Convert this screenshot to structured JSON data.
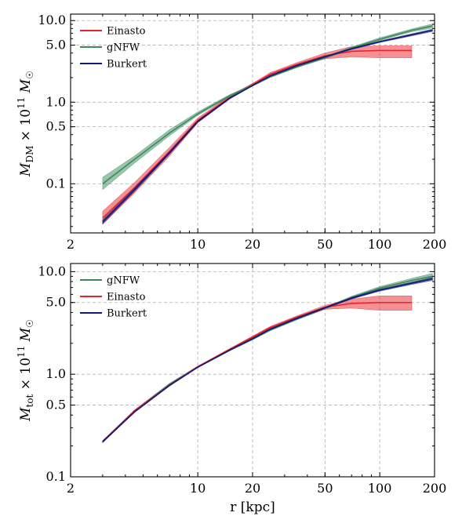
{
  "colors": {
    "Einasto": "#e8232b",
    "gNFW": "#3a8a5a",
    "Burkert": "#141a78"
  },
  "chart_data": [
    {
      "type": "line",
      "id": "top",
      "xscale": "log",
      "yscale": "log",
      "xlim": [
        2,
        200
      ],
      "ylim": [
        0.025,
        12
      ],
      "grid": true,
      "legend_position": "top-left",
      "xlabel": "",
      "ylabel": "M_DM × 10^11 M_☉",
      "ylabel_parts": {
        "base": "M",
        "sub": "DM",
        "mid": " × 10",
        "exp": "11",
        "mass": " M",
        "sun": "☉"
      },
      "x_ticks": [
        2,
        10,
        20,
        50,
        100,
        200
      ],
      "x_tick_labels": [
        "2",
        "10",
        "20",
        "50",
        "100",
        "200"
      ],
      "y_ticks": [
        0.1,
        0.5,
        1.0,
        5.0,
        10.0
      ],
      "y_tick_labels": [
        "0.1",
        "0.5",
        "1.0",
        "5.0",
        "10.0"
      ],
      "legend": [
        "Einasto",
        "gNFW",
        "Burkert"
      ],
      "series": [
        {
          "name": "Einasto",
          "x": [
            3.0,
            4.5,
            7.0,
            10,
            15,
            20,
            25,
            35,
            50,
            70,
            100,
            150
          ],
          "y": [
            0.038,
            0.09,
            0.25,
            0.6,
            1.15,
            1.65,
            2.2,
            2.9,
            3.7,
            4.2,
            4.3,
            4.3
          ],
          "lower": [
            0.032,
            0.078,
            0.22,
            0.56,
            1.1,
            1.6,
            2.1,
            2.75,
            3.4,
            3.6,
            3.5,
            3.5
          ],
          "upper": [
            0.046,
            0.104,
            0.28,
            0.64,
            1.2,
            1.7,
            2.3,
            3.05,
            4.0,
            4.8,
            4.9,
            4.9
          ]
        },
        {
          "name": "gNFW",
          "x": [
            3.0,
            4.5,
            7.0,
            10,
            15,
            20,
            25,
            35,
            50,
            70,
            100,
            150,
            195
          ],
          "y": [
            0.1,
            0.2,
            0.42,
            0.72,
            1.2,
            1.6,
            2.05,
            2.7,
            3.5,
            4.6,
            5.9,
            7.6,
            8.6
          ],
          "lower": [
            0.085,
            0.18,
            0.39,
            0.69,
            1.17,
            1.57,
            2.0,
            2.65,
            3.42,
            4.45,
            5.7,
            7.3,
            8.1
          ],
          "upper": [
            0.12,
            0.22,
            0.46,
            0.76,
            1.24,
            1.64,
            2.1,
            2.78,
            3.6,
            4.75,
            6.15,
            7.9,
            9.1
          ]
        },
        {
          "name": "Burkert",
          "x": [
            3.0,
            4.5,
            7.0,
            10,
            15,
            20,
            25,
            35,
            50,
            70,
            100,
            150,
            195
          ],
          "y": [
            0.034,
            0.085,
            0.24,
            0.58,
            1.12,
            1.6,
            2.1,
            2.8,
            3.6,
            4.5,
            5.5,
            6.7,
            7.6
          ],
          "lower": [
            0.032,
            0.081,
            0.232,
            0.565,
            1.1,
            1.58,
            2.07,
            2.76,
            3.55,
            4.42,
            5.38,
            6.5,
            7.35
          ],
          "upper": [
            0.036,
            0.089,
            0.248,
            0.595,
            1.14,
            1.62,
            2.13,
            2.85,
            3.66,
            4.58,
            5.62,
            6.9,
            7.85
          ]
        }
      ]
    },
    {
      "type": "line",
      "id": "bottom",
      "xscale": "log",
      "yscale": "log",
      "xlim": [
        2,
        200
      ],
      "ylim": [
        0.1,
        12
      ],
      "grid": true,
      "legend_position": "top-left",
      "xlabel": "r [kpc]",
      "ylabel": "M_tot × 10^11 M_☉",
      "ylabel_parts": {
        "base": "M",
        "sub": "tot",
        "mid": " × 10",
        "exp": "11",
        "mass": " M",
        "sun": "☉"
      },
      "x_ticks": [
        2,
        10,
        20,
        50,
        100,
        200
      ],
      "x_tick_labels": [
        "2",
        "10",
        "20",
        "50",
        "100",
        "200"
      ],
      "y_ticks": [
        0.1,
        0.5,
        1.0,
        5.0,
        10.0
      ],
      "y_tick_labels": [
        "0.1",
        "0.5",
        "1.0",
        "5.0",
        "10.0"
      ],
      "legend": [
        "gNFW",
        "Einasto",
        "Burkert"
      ],
      "series": [
        {
          "name": "gNFW",
          "x": [
            3.0,
            4.5,
            7.0,
            10,
            15,
            20,
            25,
            35,
            50,
            70,
            100,
            150,
            195
          ],
          "y": [
            0.22,
            0.44,
            0.8,
            1.18,
            1.72,
            2.2,
            2.7,
            3.45,
            4.4,
            5.6,
            6.9,
            8.2,
            9.0
          ],
          "lower": [
            0.215,
            0.43,
            0.785,
            1.16,
            1.69,
            2.16,
            2.65,
            3.38,
            4.3,
            5.45,
            6.65,
            7.85,
            8.5
          ],
          "upper": [
            0.225,
            0.45,
            0.815,
            1.2,
            1.75,
            2.24,
            2.75,
            3.52,
            4.5,
            5.75,
            7.15,
            8.6,
            9.6
          ]
        },
        {
          "name": "Einasto",
          "x": [
            3.0,
            4.5,
            7.0,
            10,
            15,
            20,
            25,
            35,
            50,
            70,
            100,
            150
          ],
          "y": [
            0.22,
            0.44,
            0.78,
            1.18,
            1.75,
            2.3,
            2.85,
            3.6,
            4.5,
            4.9,
            5.0,
            5.0
          ],
          "lower": [
            0.215,
            0.43,
            0.765,
            1.16,
            1.72,
            2.25,
            2.78,
            3.5,
            4.3,
            4.4,
            4.2,
            4.2
          ],
          "upper": [
            0.225,
            0.45,
            0.795,
            1.2,
            1.78,
            2.35,
            2.92,
            3.7,
            4.7,
            5.4,
            5.8,
            5.8
          ]
        },
        {
          "name": "Burkert",
          "x": [
            3.0,
            4.5,
            7.0,
            10,
            15,
            20,
            25,
            35,
            50,
            70,
            100,
            150,
            195
          ],
          "y": [
            0.22,
            0.43,
            0.78,
            1.17,
            1.72,
            2.22,
            2.75,
            3.5,
            4.45,
            5.5,
            6.6,
            7.7,
            8.5
          ],
          "lower": [
            0.216,
            0.425,
            0.77,
            1.16,
            1.7,
            2.19,
            2.71,
            3.45,
            4.38,
            5.4,
            6.45,
            7.5,
            8.2
          ],
          "upper": [
            0.224,
            0.435,
            0.79,
            1.18,
            1.74,
            2.25,
            2.79,
            3.55,
            4.52,
            5.6,
            6.75,
            7.9,
            8.8
          ]
        }
      ]
    }
  ]
}
